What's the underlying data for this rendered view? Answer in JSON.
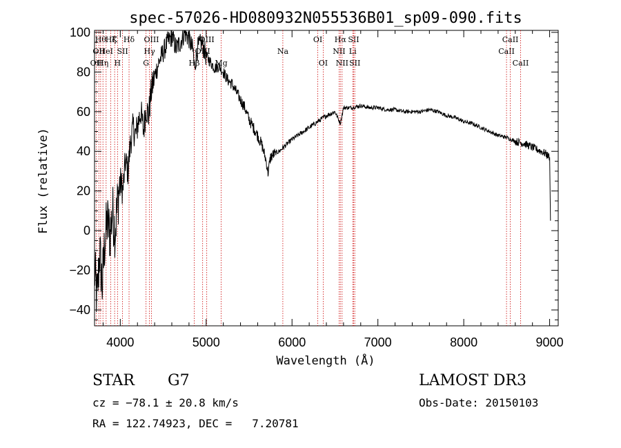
{
  "chart_data": {
    "type": "line",
    "title": "spec-57026-HD080932N055536B01_sp09-090.fits",
    "xlabel": "Wavelength (Å)",
    "ylabel": "Flux (relative)",
    "xlim": [
      3700,
      9100
    ],
    "ylim": [
      -48,
      101
    ],
    "xticks": [
      4000,
      5000,
      6000,
      7000,
      8000,
      9000
    ],
    "yticks": [
      -40,
      -20,
      0,
      20,
      40,
      60,
      80,
      100
    ],
    "grid": false,
    "line_color": "#000000",
    "marker_color": "#cc0000",
    "series": [
      {
        "x": [
          3700,
          3730,
          3760,
          3790,
          3820,
          3850,
          3880,
          3910,
          3940,
          3970,
          4000,
          4030,
          4060,
          4090,
          4120,
          4150,
          4180,
          4210,
          4240,
          4270,
          4300,
          4330,
          4360,
          4400,
          4450,
          4500,
          4550,
          4600,
          4650,
          4700,
          4750,
          4800,
          4850,
          4861,
          4900,
          4950,
          5000,
          5050,
          5100,
          5150,
          5200,
          5250,
          5300,
          5350,
          5400,
          5450,
          5500,
          5550,
          5600,
          5650,
          5700,
          5720,
          5750,
          5800,
          5850,
          5900,
          5950,
          6000,
          6100,
          6200,
          6300,
          6400,
          6500,
          6563,
          6600,
          6700,
          6800,
          6900,
          7000,
          7100,
          7200,
          7300,
          7400,
          7500,
          7600,
          7700,
          7800,
          7900,
          8000,
          8100,
          8200,
          8300,
          8400,
          8500,
          8600,
          8700,
          8800,
          8850,
          8900,
          8950,
          9000,
          9010
        ],
        "y": [
          -20,
          -35,
          -10,
          -28,
          -5,
          5,
          -2,
          10,
          0,
          15,
          25,
          20,
          35,
          30,
          45,
          52,
          48,
          55,
          60,
          50,
          62,
          58,
          70,
          78,
          85,
          90,
          95,
          98,
          92,
          95,
          100,
          97,
          90,
          82,
          92,
          95,
          88,
          85,
          82,
          83,
          80,
          76,
          74,
          70,
          66,
          62,
          56,
          52,
          48,
          43,
          35,
          29,
          37,
          39,
          40,
          42,
          44,
          46,
          49,
          52,
          55,
          58,
          60,
          54,
          62,
          62,
          63,
          62,
          62,
          61,
          61,
          60,
          60,
          60,
          61,
          60,
          58,
          57,
          55,
          54,
          52,
          50,
          48,
          47,
          45,
          44,
          42,
          41,
          40,
          39,
          37,
          5
        ]
      }
    ],
    "lines": [
      {
        "x": 3720,
        "label": "OII",
        "row": 3
      },
      {
        "x": 3750,
        "label": "OII",
        "row": 2
      },
      {
        "x": 3771,
        "label": "Hθ",
        "row": 1
      },
      {
        "x": 3798,
        "label": "Hη",
        "row": 3
      },
      {
        "x": 3835,
        "label": "HeI",
        "row": 2
      },
      {
        "x": 3889,
        "label": "Hζ",
        "row": 1
      },
      {
        "x": 3934,
        "label": "K",
        "row": 1
      },
      {
        "x": 3968,
        "label": "H",
        "row": 3
      },
      {
        "x": 4026,
        "label": "SII",
        "row": 2
      },
      {
        "x": 4102,
        "label": "Hδ",
        "row": 1
      },
      {
        "x": 4300,
        "label": "G",
        "row": 3
      },
      {
        "x": 4340,
        "label": "Hγ",
        "row": 2
      },
      {
        "x": 4363,
        "label": "OIII",
        "row": 1
      },
      {
        "x": 4861,
        "label": "Hβ",
        "row": 3
      },
      {
        "x": 4959,
        "label": "OIII",
        "row": 2
      },
      {
        "x": 5007,
        "label": "OIII",
        "row": 1
      },
      {
        "x": 5175,
        "label": "Mg",
        "row": 3
      },
      {
        "x": 5893,
        "label": "Na",
        "row": 2
      },
      {
        "x": 6300,
        "label": "OI",
        "row": 1
      },
      {
        "x": 6363,
        "label": "OI",
        "row": 3
      },
      {
        "x": 6548,
        "label": "NII",
        "row": 2
      },
      {
        "x": 6563,
        "label": "Hα",
        "row": 1
      },
      {
        "x": 6583,
        "label": "NII",
        "row": 3
      },
      {
        "x": 6707,
        "label": "Li",
        "row": 2
      },
      {
        "x": 6717,
        "label": "SII",
        "row": 1
      },
      {
        "x": 6731,
        "label": "SII",
        "row": 3
      },
      {
        "x": 8498,
        "label": "CaII",
        "row": 2
      },
      {
        "x": 8542,
        "label": "CaII",
        "row": 1
      },
      {
        "x": 8662,
        "label": "CaII",
        "row": 3
      }
    ]
  },
  "info": {
    "object_class": "STAR",
    "subclass": "G7",
    "survey": "LAMOST DR3",
    "redshift": "cz = −78.1 ± 20.8 km/s",
    "obs_date": "Obs-Date: 20150103",
    "coords": "RA = 122.74923, DEC =   7.20781"
  }
}
